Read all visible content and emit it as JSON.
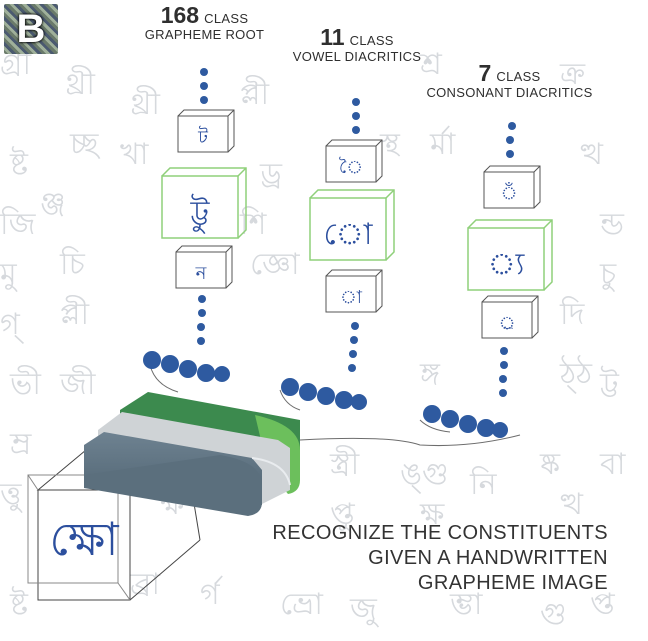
{
  "logo_letter": "B",
  "heads": {
    "root": {
      "count": "168",
      "cls": "CLASS",
      "label": "GRAPHEME ROOT"
    },
    "vowel": {
      "count": "11",
      "cls": "CLASS",
      "label": "VOWEL DIACRITICS"
    },
    "consonant": {
      "count": "7",
      "cls": "CLASS",
      "label": "CONSONANT DIACRITICS"
    }
  },
  "caption": {
    "line1": "RECOGNIZE THE CONSTITUENTS",
    "line2": "GIVEN A HANDWRITTEN",
    "line3": "GRAPHEME IMAGE"
  },
  "glyphs": {
    "root_top": "ট",
    "root_main": "ট্টু",
    "root_bottom": "ন",
    "vowel_top": "ৈ",
    "vowel_main": "ো",
    "vowel_bottom": "া",
    "consonant_top": "ঁ",
    "consonant_main": "্য",
    "consonant_bottom": "্র",
    "input": "ক্ষো"
  },
  "colors": {
    "dot": "#2e5aa0",
    "green_dark": "#3c8a4e",
    "green_light": "#6cbf5c",
    "gray_light": "#cfd3d6",
    "slate": "#5b6f7d",
    "box_green": "#8fd07a",
    "glyph_blue": "#2c4f9e"
  }
}
